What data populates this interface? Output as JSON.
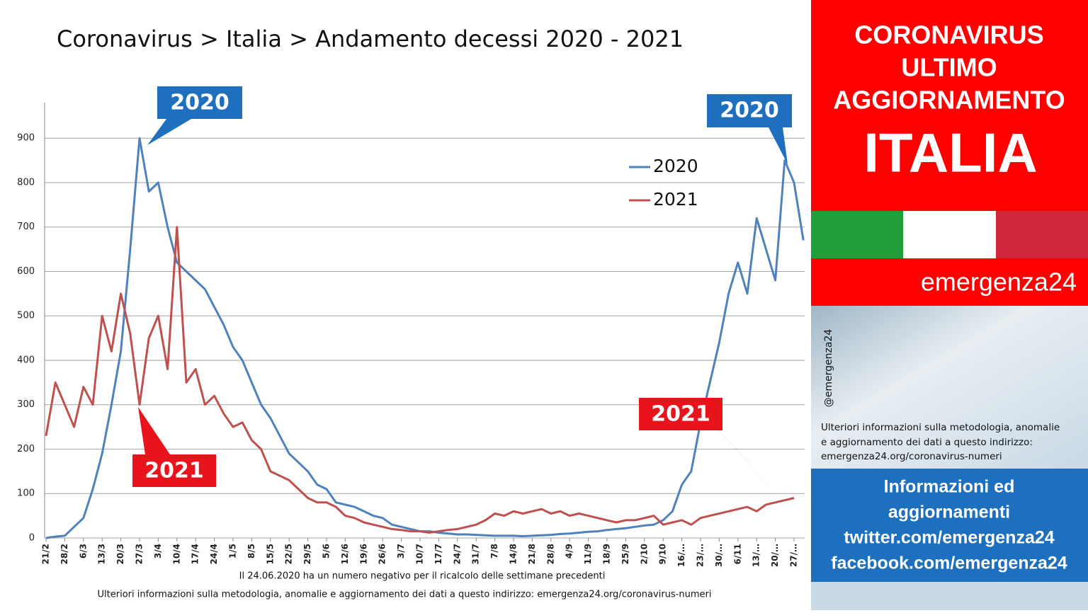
{
  "chart_data": {
    "type": "line",
    "title": "Coronavirus > Italia > Andamento decessi 2020 - 2021",
    "categories": [
      "21/2",
      null,
      "28/2",
      null,
      "6/3",
      null,
      "13/3",
      null,
      "20/3",
      null,
      "27/3",
      null,
      "3/4",
      null,
      "10/4",
      null,
      "17/4",
      null,
      "24/4",
      null,
      "1/5",
      null,
      "8/5",
      null,
      "15/5",
      null,
      "22/5",
      null,
      "29/5",
      null,
      "5/6",
      null,
      "12/6",
      null,
      "19/6",
      null,
      "26/6",
      null,
      "3/7",
      null,
      "10/7",
      null,
      "17/7",
      null,
      "24/7",
      null,
      "31/7",
      null,
      "7/8",
      null,
      "14/8",
      null,
      "21/8",
      null,
      "28/8",
      null,
      "4/9",
      null,
      "11/9",
      null,
      "18/9",
      null,
      "25/9",
      null,
      "2/10",
      null,
      "9/10",
      null,
      "16/…",
      null,
      "23/…",
      null,
      "30/…",
      null,
      "6/11",
      null,
      "13/…",
      null,
      "20/…",
      null,
      "27/…",
      null
    ],
    "series": [
      {
        "name": "2020",
        "color": "#4f81bd",
        "values": [
          0,
          3,
          5,
          25,
          45,
          110,
          190,
          300,
          420,
          650,
          900,
          780,
          800,
          700,
          620,
          600,
          580,
          560,
          520,
          480,
          430,
          400,
          350,
          300,
          270,
          230,
          190,
          170,
          150,
          120,
          110,
          80,
          75,
          70,
          60,
          50,
          45,
          30,
          25,
          20,
          15,
          15,
          12,
          10,
          8,
          8,
          7,
          6,
          5,
          5,
          5,
          4,
          5,
          6,
          7,
          9,
          10,
          12,
          14,
          15,
          18,
          20,
          22,
          25,
          28,
          30,
          40,
          60,
          120,
          150,
          260,
          350,
          440,
          550,
          620,
          550,
          720,
          650,
          580,
          850,
          800,
          670
        ]
      },
      {
        "name": "2021",
        "color": "#c0504d",
        "values": [
          230,
          350,
          300,
          250,
          340,
          300,
          500,
          420,
          550,
          460,
          300,
          450,
          500,
          380,
          700,
          350,
          380,
          300,
          320,
          280,
          250,
          260,
          220,
          200,
          150,
          140,
          130,
          110,
          90,
          80,
          80,
          70,
          50,
          45,
          35,
          30,
          25,
          20,
          18,
          15,
          15,
          12,
          15,
          18,
          20,
          25,
          30,
          40,
          55,
          50,
          60,
          55,
          60,
          65,
          55,
          60,
          50,
          55,
          50,
          45,
          40,
          35,
          40,
          40,
          45,
          50,
          30,
          35,
          40,
          30,
          45,
          50,
          55,
          60,
          65,
          70,
          60,
          75,
          80,
          85,
          90,
          null
        ]
      }
    ],
    "ylim": [
      0,
      980
    ],
    "yticks": [
      0,
      100,
      200,
      300,
      400,
      500,
      600,
      700,
      800,
      900
    ],
    "grid": true,
    "legend": "top-right",
    "annotations": [
      "2020",
      "2020",
      "2021",
      "2021"
    ],
    "notes": [
      "Il 24.06.2020 ha un numero negativo per il ricalcolo delle settimane precedenti",
      "Ulteriori informazioni sulla metodologia, anomalie e aggiornamento dei dati a questo indirizzo: emergenza24.org/coronavirus-numeri"
    ]
  },
  "sidebar": {
    "header": [
      "CORONAVIRUS",
      "ULTIMO",
      "AGGIORNAMENTO"
    ],
    "country": "ITALIA",
    "brand": "emergenza24",
    "handle": "@emergenza24",
    "info": [
      "Ulteriori informazioni sulla metodologia, anomalie",
      "e aggiornamento dei dati a questo indirizzo:",
      "emergenza24.org/coronavirus-numeri"
    ],
    "social": [
      "Informazioni ed",
      "aggiornamenti",
      "twitter.com/emergenza24",
      "facebook.com/emergenza24"
    ]
  }
}
